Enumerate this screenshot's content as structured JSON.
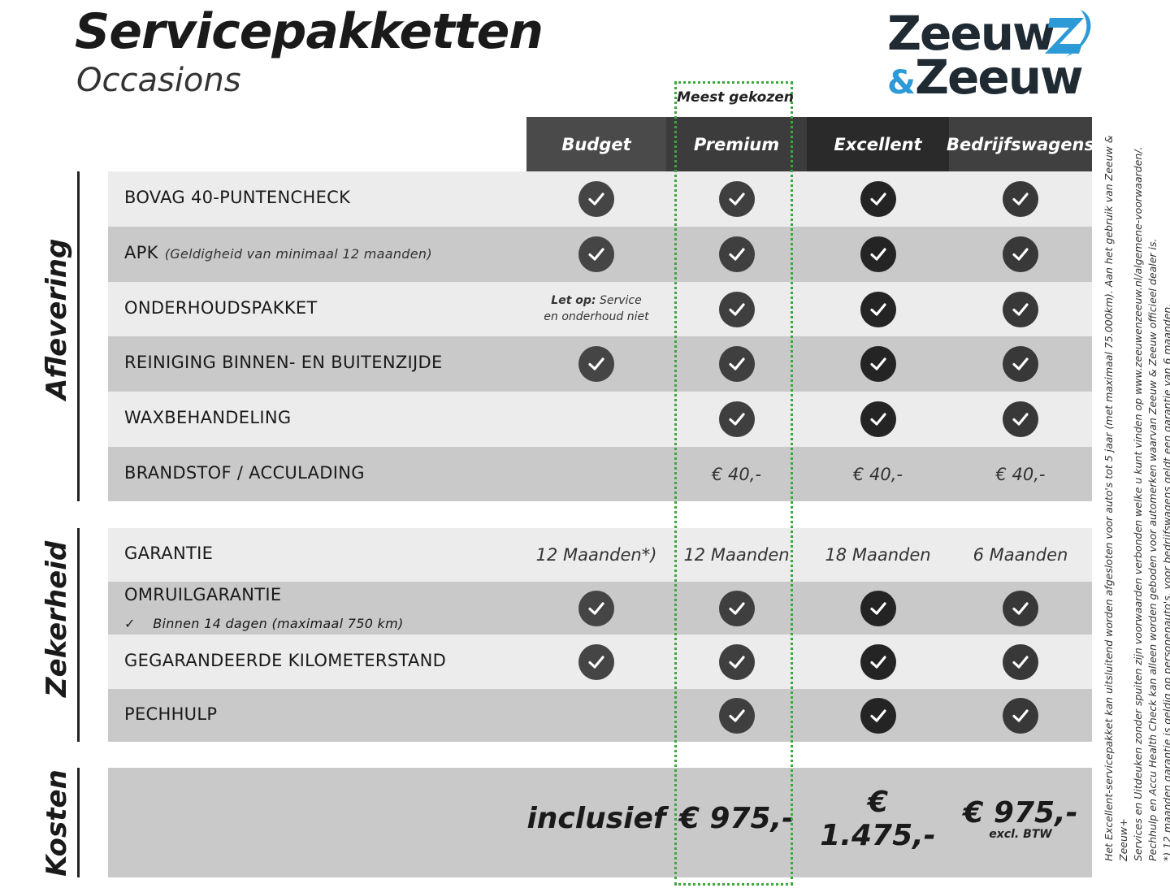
{
  "header": {
    "title": "Servicepakketten",
    "subtitle": "Occasions"
  },
  "logo": {
    "line1": "Zeeuw",
    "amp": "&",
    "line2": "Zeeuw",
    "brand_dark": "#1f2a33",
    "brand_blue": "#2b9ad6"
  },
  "highlight_label": "Meest gekozen",
  "columns": [
    {
      "label": "Budget",
      "bg": "#4a4a4a",
      "check": "#454545"
    },
    {
      "label": "Premium",
      "bg": "#3c3c3c",
      "check": "#3f3f3f"
    },
    {
      "label": "Excellent",
      "bg": "#2a2a2a",
      "check": "#242424"
    },
    {
      "label": "Bedrijfswagens",
      "bg": "#404040",
      "check": "#383838"
    }
  ],
  "sections": [
    {
      "label": "Aflevering"
    },
    {
      "label": "Zekerheid"
    },
    {
      "label": "Kosten"
    }
  ],
  "rows": [
    {
      "label": "BOVAG 40-PUNTENCHECK",
      "cells": [
        "check",
        "check",
        "check",
        "check"
      ]
    },
    {
      "label": "APK",
      "note": "(Geldigheid van minimaal 12 maanden)",
      "cells": [
        "check",
        "check",
        "check",
        "check"
      ]
    },
    {
      "label": "ONDERHOUDSPAKKET",
      "cells": [
        {
          "bold": "Let op:",
          "text": " Service en onderhoud niet"
        },
        "check",
        "check",
        "check"
      ]
    },
    {
      "label": "REINIGING BINNEN- EN BUITENZIJDE",
      "cells": [
        "check",
        "check",
        "check",
        "check"
      ]
    },
    {
      "label": "WAXBEHANDELING",
      "cells": [
        "",
        "check",
        "check",
        "check"
      ]
    },
    {
      "label": "BRANDSTOF / ACCULADING",
      "cells": [
        "",
        "€ 40,-",
        "€ 40,-",
        "€ 40,-"
      ]
    },
    {
      "label": "GARANTIE",
      "cells": [
        "12 Maanden*)",
        "12 Maanden",
        "18 Maanden",
        "6 Maanden"
      ]
    },
    {
      "label": "OMRUILGARANTIE",
      "sub": "✓    Binnen 14 dagen (maximaal 750 km)",
      "cells": [
        "check",
        "check",
        "check",
        "check"
      ]
    },
    {
      "label": "GEGARANDEERDE KILOMETERSTAND",
      "cells": [
        "check",
        "check",
        "check",
        "check"
      ]
    },
    {
      "label": "PECHHULP",
      "cells": [
        "",
        "check",
        "check",
        "check"
      ]
    }
  ],
  "costs": {
    "values": [
      "inclusief",
      "€ 975,-",
      "€ 1.475,-",
      "€ 975,-"
    ],
    "note": "excl. BTW"
  },
  "footnote": [
    "Het Excellent-servicepakket kan uitsluitend worden afgesloten voor auto's tot 5 jaar (met maximaal 75.000km). Aan het gebruik van Zeeuw & Zeeuw+",
    "Services en Uitdeuken zonder spuiten zijn voorwaarden verbonden welke u kunt vinden op www.zeeuwenzeeuw.nl/algemene-voorwaarden/.",
    "Pechhulp en Accu Health Check kan alleen worden geboden voor automerken waarvan Zeeuw & Zeeuw officieel dealer is.",
    "*) 12 maanden garantie is geldig op personenauto's, voor bedrijfswagens geldt een garantie van 6 maanden."
  ],
  "highlight_color": "#3aa83a"
}
